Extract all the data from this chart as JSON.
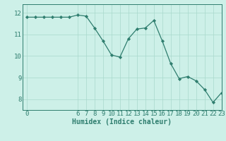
{
  "xlabel": "Humidex (Indice chaleur)",
  "ylabel": "",
  "x_values": [
    0,
    1,
    2,
    3,
    4,
    5,
    6,
    7,
    8,
    9,
    10,
    11,
    12,
    13,
    14,
    15,
    16,
    17,
    18,
    19,
    20,
    21,
    22,
    23
  ],
  "y_values": [
    11.8,
    11.8,
    11.8,
    11.8,
    11.8,
    11.8,
    11.9,
    11.85,
    11.3,
    10.7,
    10.05,
    9.95,
    10.8,
    11.25,
    11.3,
    11.65,
    10.7,
    9.65,
    8.95,
    9.05,
    8.85,
    8.45,
    7.85,
    8.3
  ],
  "line_color": "#2e7d6e",
  "marker": "D",
  "marker_size": 2.2,
  "bg_color": "#cdf0e8",
  "grid_color": "#a8d8cc",
  "axis_color": "#2e7d6e",
  "xlim": [
    -0.5,
    23
  ],
  "ylim": [
    7.5,
    12.4
  ],
  "yticks": [
    8,
    9,
    10,
    11,
    12
  ],
  "xticks": [
    0,
    6,
    7,
    8,
    9,
    10,
    11,
    12,
    13,
    14,
    15,
    16,
    17,
    18,
    19,
    20,
    21,
    22,
    23
  ],
  "label_fontsize": 7,
  "tick_fontsize": 6.5
}
